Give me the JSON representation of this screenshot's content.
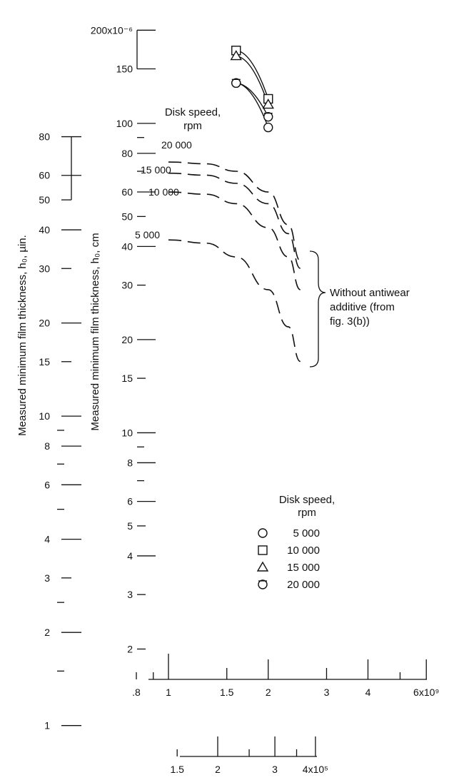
{
  "chart_data": {
    "type": "scatter",
    "title": "",
    "y_label_in": "Measured minimum film thickness, h₀, µin.",
    "y_label_cm": "Measured minimum film thickness, h₀, cm",
    "y_in_ticks": [
      "80",
      "60",
      "50",
      "40",
      "30",
      "20",
      "15",
      "10",
      "8",
      "6",
      "4",
      "3",
      "2",
      "1"
    ],
    "y_cm_ticks": [
      "200x10⁻⁶",
      "150",
      "100",
      "80",
      "60",
      "50",
      "40",
      "30",
      "20",
      "15",
      "10",
      "8",
      "6",
      "5",
      "4",
      "3",
      "2"
    ],
    "x_main_ticks": [
      ".8",
      "1",
      "1.5",
      "2",
      "3",
      "4",
      "6x10⁹"
    ],
    "x_second_ticks": [
      "1.5",
      "2",
      "3",
      "4x10⁵"
    ],
    "y_scale": "log",
    "x_scale": "log",
    "x_main_range": [
      800000000.0,
      6000000000.0
    ],
    "y_cm_range": [
      2e-06,
      0.0002
    ],
    "legend_title": [
      "Disk speed,",
      "rpm"
    ],
    "legend_entries": [
      {
        "marker": "circle",
        "label": "5 000"
      },
      {
        "marker": "square",
        "label": "10 000"
      },
      {
        "marker": "triangle",
        "label": "15 000"
      },
      {
        "marker": "flagged-circle",
        "label": "20 000"
      }
    ],
    "dashed_title": [
      "Disk speed,",
      "rpm"
    ],
    "dashed_labels": [
      "20 000",
      "15 000",
      "10 000",
      "5 000"
    ],
    "annotation": [
      "Without antiwear",
      "additive (from",
      "fig. 3(b))"
    ],
    "series": [
      {
        "name": "5 000",
        "marker": "circle",
        "style": "solid",
        "x": [
          1600000000.0,
          2000000000.0
        ],
        "y": [
          0.000135,
          9.7e-05
        ]
      },
      {
        "name": "10 000",
        "marker": "square",
        "style": "solid",
        "x": [
          1600000000.0,
          2000000000.0
        ],
        "y": [
          0.000172,
          0.00012
        ]
      },
      {
        "name": "15 000",
        "marker": "triangle",
        "style": "solid",
        "x": [
          1600000000.0,
          2000000000.0
        ],
        "y": [
          0.000165,
          0.000115
        ]
      },
      {
        "name": "20 000",
        "marker": "flagged-circle",
        "style": "solid",
        "x": [
          1600000000.0,
          2000000000.0
        ],
        "y": [
          0.000135,
          0.000105
        ]
      },
      {
        "name": "20 000",
        "style": "dashed",
        "x": [
          1000000000.0,
          1300000000.0,
          1600000000.0,
          2000000000.0,
          2300000000.0,
          2500000000.0
        ],
        "y": [
          7.5e-05,
          7.4e-05,
          7e-05,
          6e-05,
          4.7e-05,
          3.6e-05
        ]
      },
      {
        "name": "15 000",
        "style": "dashed",
        "x": [
          1000000000.0,
          1300000000.0,
          1600000000.0,
          2000000000.0,
          2300000000.0,
          2500000000.0
        ],
        "y": [
          6.9e-05,
          6.8e-05,
          6.4e-05,
          5.5e-05,
          4.4e-05,
          3.4e-05
        ]
      },
      {
        "name": "10 000",
        "style": "dashed",
        "x": [
          1000000000.0,
          1300000000.0,
          1600000000.0,
          2000000000.0,
          2300000000.0,
          2500000000.0
        ],
        "y": [
          6e-05,
          5.9e-05,
          5.5e-05,
          4.6e-05,
          3.7e-05,
          2.9e-05
        ]
      },
      {
        "name": "5 000",
        "style": "dashed",
        "x": [
          1000000000.0,
          1300000000.0,
          1600000000.0,
          2000000000.0,
          2300000000.0,
          2500000000.0
        ],
        "y": [
          4.2e-05,
          4.1e-05,
          3.7e-05,
          2.9e-05,
          2.2e-05,
          1.7e-05
        ]
      }
    ]
  }
}
